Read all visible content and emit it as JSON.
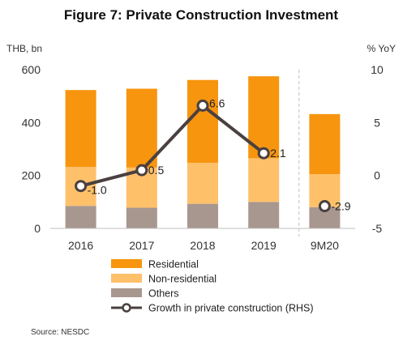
{
  "chart_data": {
    "type": "bar",
    "stacked": true,
    "title": "Figure 7: Private Construction Investment",
    "ylabel_left": "THB, bn",
    "ylabel_right": "% YoY",
    "categories": [
      "2016",
      "2017",
      "2018",
      "2019",
      "9M20"
    ],
    "ylim_left": [
      0,
      600
    ],
    "yticks_left": [
      "0",
      "200",
      "400",
      "600"
    ],
    "ylim_right": [
      -5,
      10
    ],
    "yticks_right": [
      "-5",
      "0",
      "5",
      "10"
    ],
    "series": [
      {
        "name": "Others",
        "color": "#a8978f",
        "values": [
          85,
          78,
          93,
          100,
          80
        ]
      },
      {
        "name": "Non-residential",
        "color": "#ffc06a",
        "values": [
          147,
          152,
          155,
          165,
          125
        ]
      },
      {
        "name": "Residential",
        "color": "#f7950f",
        "values": [
          291,
          298,
          313,
          310,
          227
        ]
      }
    ],
    "line_series": {
      "name": "Growth in private construction (RHS)",
      "color": "#4a4040",
      "axis": "right",
      "values": [
        -1.0,
        0.5,
        6.6,
        2.1,
        -2.9
      ],
      "labels": [
        "-1.0",
        "0.5",
        "6.6",
        "2.1",
        "-2.9"
      ],
      "connected_through": "2019"
    },
    "legend": {
      "position": "bottom",
      "order": [
        "Residential",
        "Non-residential",
        "Others",
        "Growth in private construction (RHS)"
      ]
    },
    "grid": false,
    "annotation": "dashed separator before 9M20"
  },
  "source": "Source: NESDC"
}
